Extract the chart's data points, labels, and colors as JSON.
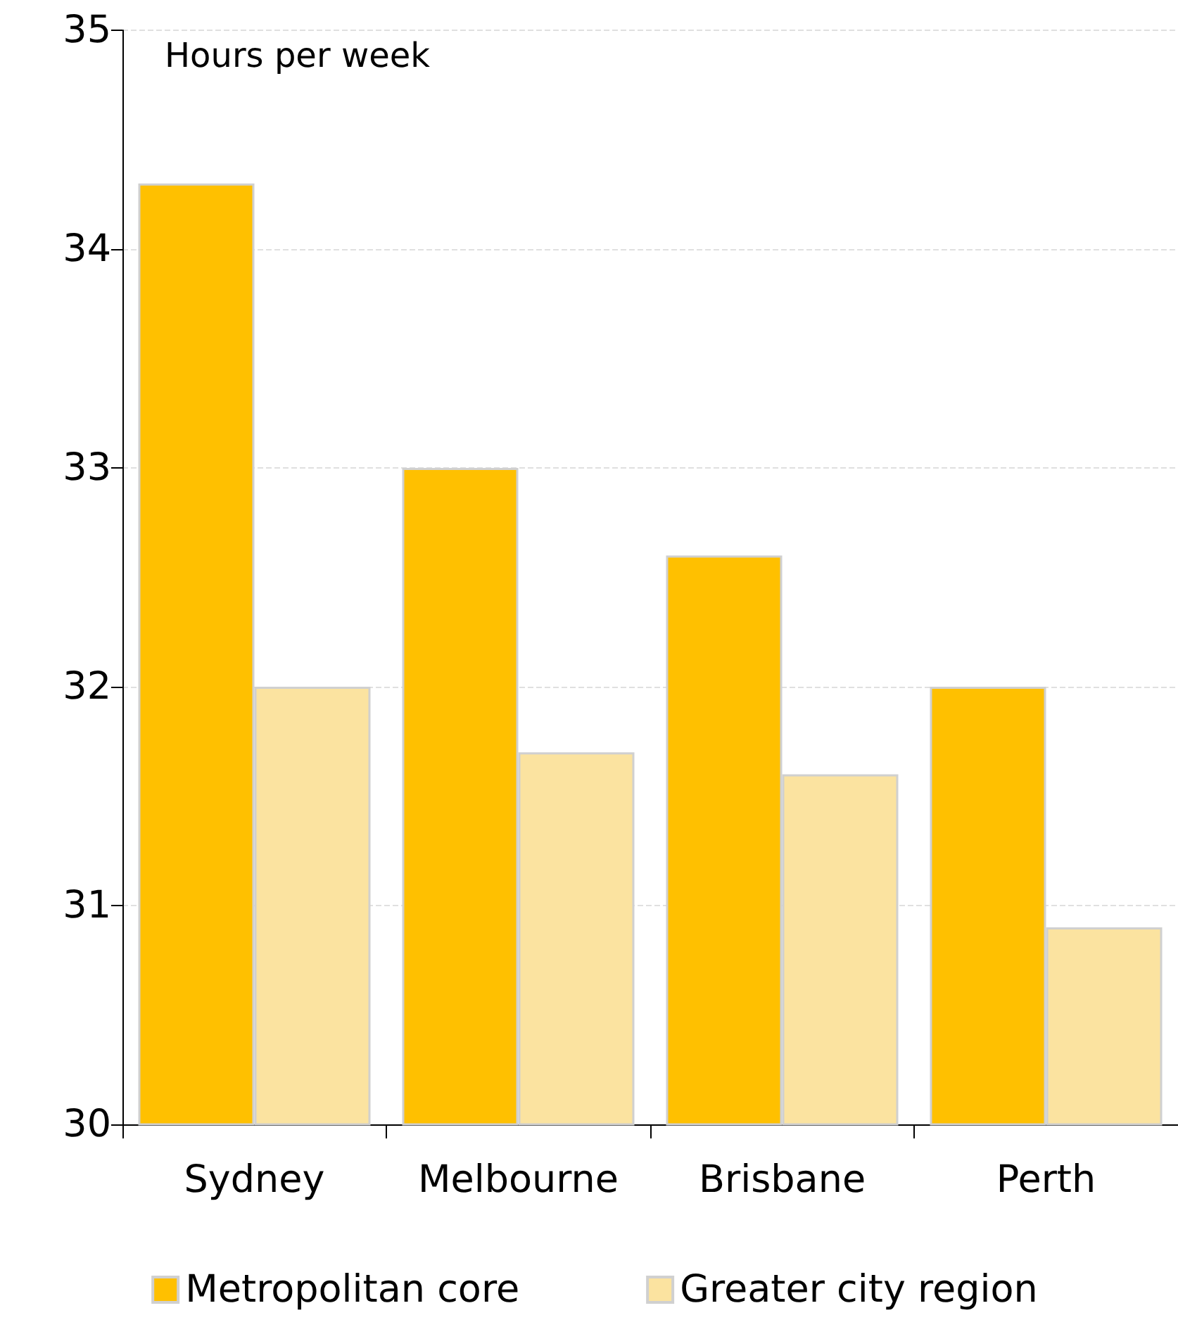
{
  "chart_data": {
    "type": "bar",
    "ylabel": "Hours per week",
    "categories": [
      "Sydney",
      "Melbourne",
      "Brisbane",
      "Perth"
    ],
    "series": [
      {
        "name": "Metropolitan core",
        "color": "#ffc000",
        "values": [
          34.3,
          33.0,
          32.6,
          32.0
        ]
      },
      {
        "name": "Greater city region",
        "color": "#fbe3a0",
        "values": [
          32.0,
          31.7,
          31.6,
          30.9
        ]
      }
    ],
    "ylim": [
      30,
      35
    ],
    "yticks": [
      30,
      31,
      32,
      33,
      34,
      35
    ],
    "grid": "y",
    "legend": "bottom"
  }
}
